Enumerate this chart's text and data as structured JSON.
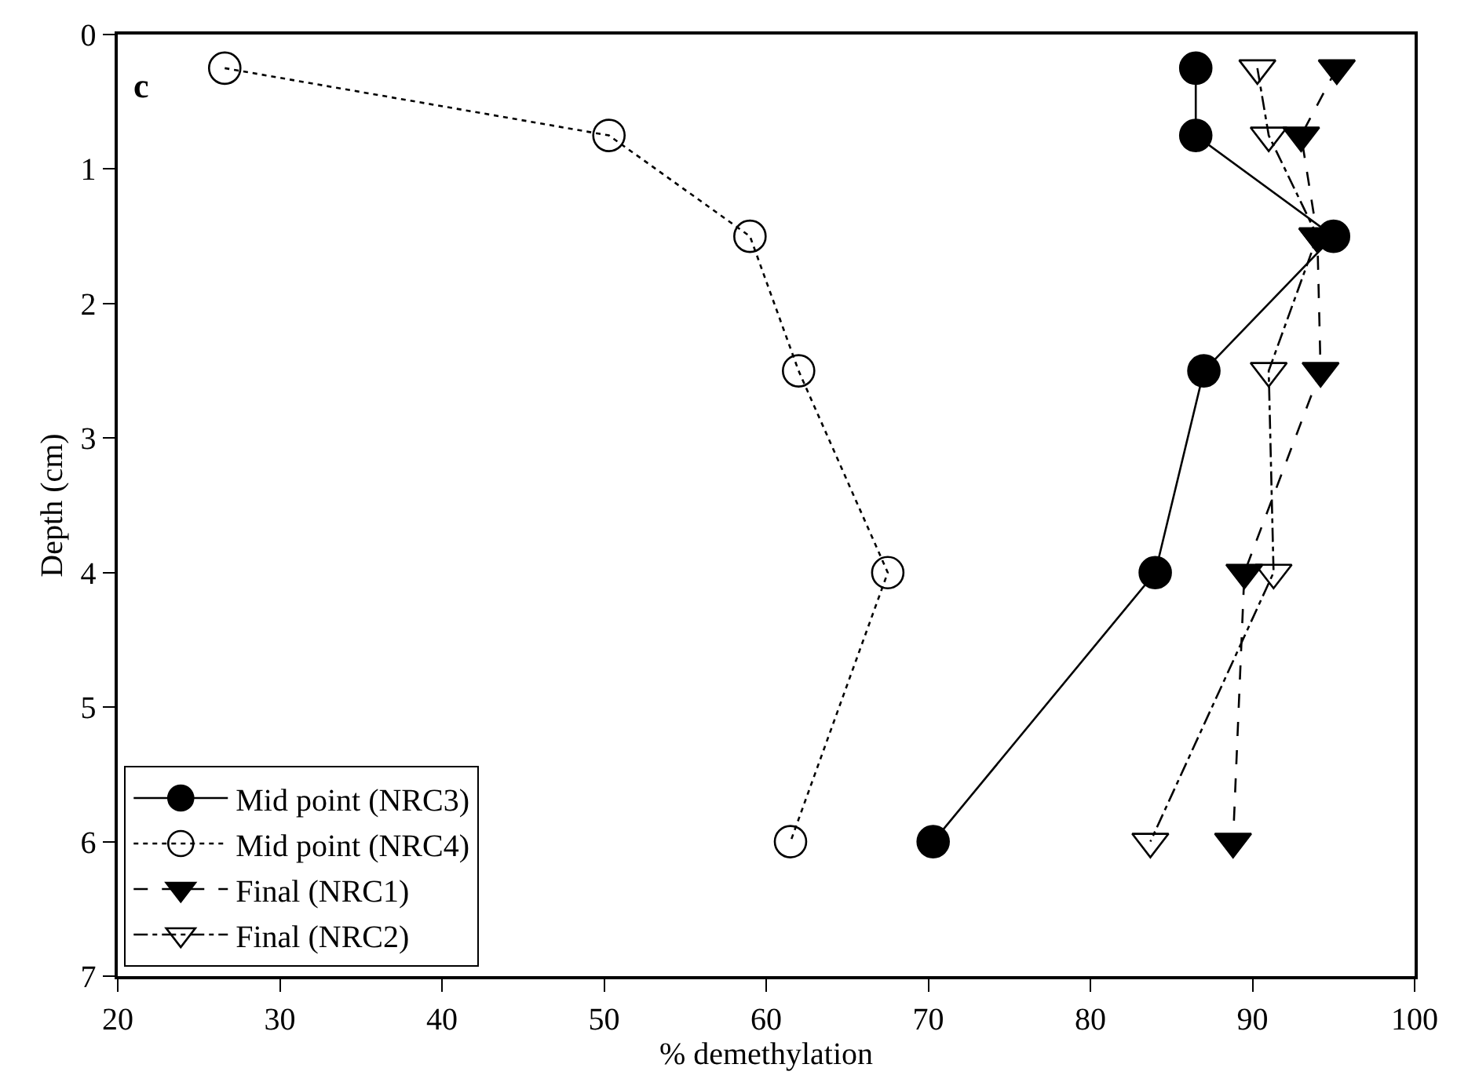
{
  "chart_data": {
    "type": "line",
    "xlabel": "% demethylation",
    "ylabel": "Depth (cm)",
    "annotations": [
      "c"
    ],
    "xlim": [
      20,
      100
    ],
    "xticks": [
      20,
      30,
      40,
      50,
      60,
      70,
      80,
      90,
      100
    ],
    "ylim": [
      7,
      0
    ],
    "yticks": [
      0,
      1,
      2,
      3,
      4,
      5,
      6,
      7
    ],
    "legend": "bottom left",
    "series": [
      {
        "name": "Mid point (NRC3)",
        "color": "#000000",
        "x": [
          86.5,
          86.5,
          95,
          87,
          84,
          70.3
        ],
        "values": [
          0.25,
          0.75,
          1.5,
          2.5,
          4,
          6
        ],
        "marker": "circle",
        "line_style": "solid"
      },
      {
        "name": "Mid point (NRC4)",
        "color": "#000000",
        "x": [
          26.6,
          50.3,
          59,
          62,
          67.5,
          61.5
        ],
        "values": [
          0.25,
          0.75,
          1.5,
          2.5,
          4,
          6
        ],
        "marker": "circle-open",
        "line_style": "dotted"
      },
      {
        "name": "Final (NRC1)",
        "color": "#000000",
        "x": [
          95.2,
          93,
          94,
          94.2,
          89.5,
          88.8
        ],
        "values": [
          0.25,
          0.75,
          1.5,
          2.5,
          4,
          6
        ],
        "marker": "triangle",
        "line_style": "dashed"
      },
      {
        "name": "Final (NRC2)",
        "color": "#000000",
        "x": [
          90.3,
          91,
          94,
          91,
          91.3,
          83.7
        ],
        "values": [
          0.25,
          0.75,
          1.5,
          2.5,
          4,
          6
        ],
        "marker": "triangle-open",
        "line_style": "dashdot"
      }
    ]
  }
}
